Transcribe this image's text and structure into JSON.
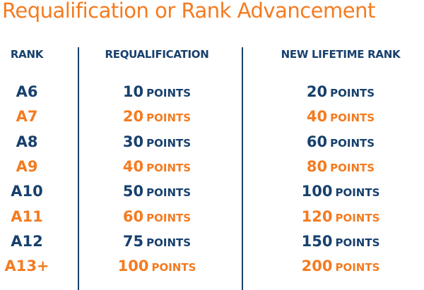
{
  "title": "Requalification or Rank Advancement",
  "headers": {
    "rank": "RANK",
    "requalification": "REQUALIFICATION",
    "lifetime": "NEW LIFETIME RANK"
  },
  "unit": "POINTS",
  "colors": {
    "navy": "#17406d",
    "orange": "#f47b20"
  },
  "rows": [
    {
      "rank": "A6",
      "requalification": "10",
      "lifetime": "20",
      "color": "navy"
    },
    {
      "rank": "A7",
      "requalification": "20",
      "lifetime": "40",
      "color": "orange"
    },
    {
      "rank": "A8",
      "requalification": "30",
      "lifetime": "60",
      "color": "navy"
    },
    {
      "rank": "A9",
      "requalification": "40",
      "lifetime": "80",
      "color": "orange"
    },
    {
      "rank": "A10",
      "requalification": "50",
      "lifetime": "100",
      "color": "navy"
    },
    {
      "rank": "A11",
      "requalification": "60",
      "lifetime": "120",
      "color": "orange"
    },
    {
      "rank": "A12",
      "requalification": "75",
      "lifetime": "150",
      "color": "navy"
    },
    {
      "rank": "A13+",
      "requalification": "100",
      "lifetime": "200",
      "color": "orange"
    }
  ]
}
